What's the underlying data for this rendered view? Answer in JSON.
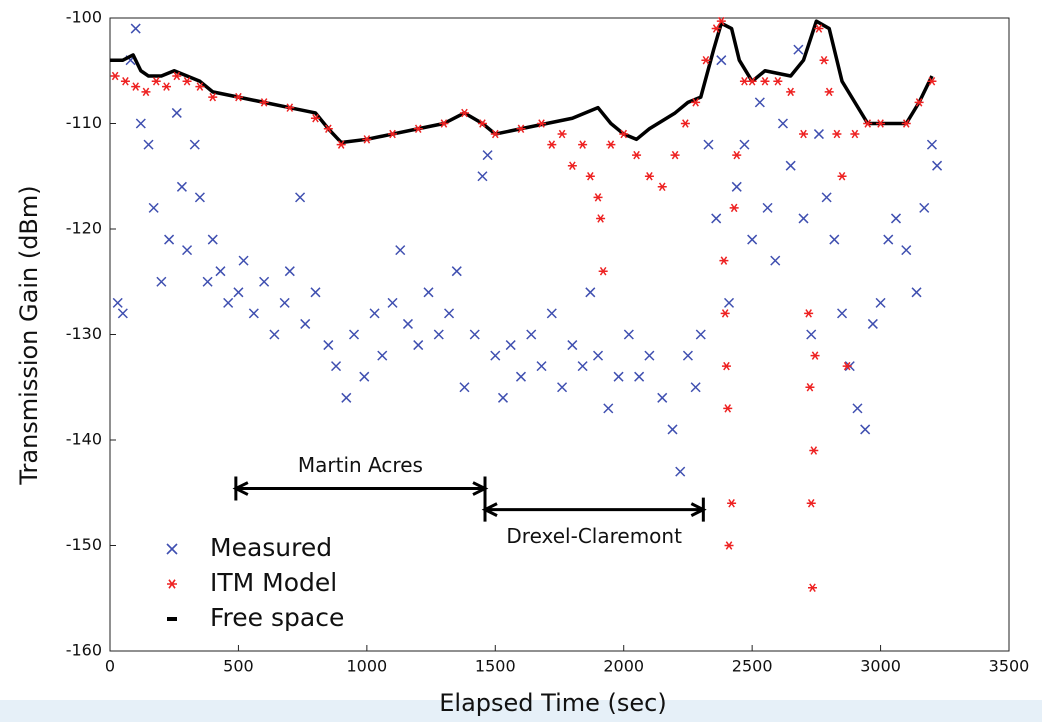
{
  "chart_data": {
    "type": "scatter",
    "xlabel": "Elapsed Time (sec)",
    "ylabel": "Transmission Gain (dBm)",
    "xlim": [
      0,
      3500
    ],
    "ylim": [
      -160,
      -100
    ],
    "xticks": [
      0,
      500,
      1000,
      1500,
      2000,
      2500,
      3000,
      3500
    ],
    "yticks": [
      -160,
      -150,
      -140,
      -130,
      -120,
      -110,
      -100
    ],
    "grid": false,
    "legend": "lower left",
    "series": [
      {
        "name": "Measured",
        "color": "#3f4fb0",
        "marker": "x",
        "x": [
          30,
          50,
          80,
          100,
          120,
          150,
          170,
          200,
          230,
          260,
          280,
          300,
          330,
          350,
          380,
          400,
          430,
          460,
          500,
          520,
          560,
          600,
          640,
          680,
          700,
          740,
          760,
          800,
          850,
          880,
          920,
          950,
          990,
          1030,
          1060,
          1100,
          1130,
          1160,
          1200,
          1240,
          1280,
          1320,
          1350,
          1380,
          1420,
          1450,
          1470,
          1500,
          1530,
          1560,
          1600,
          1640,
          1680,
          1720,
          1760,
          1800,
          1840,
          1870,
          1900,
          1940,
          1980,
          2020,
          2060,
          2100,
          2150,
          2190,
          2220,
          2250,
          2280,
          2300,
          2330,
          2360,
          2380,
          2410,
          2440,
          2470,
          2500,
          2530,
          2560,
          2590,
          2620,
          2650,
          2680,
          2700,
          2730,
          2760,
          2790,
          2820,
          2850,
          2880,
          2910,
          2940,
          2970,
          3000,
          3030,
          3060,
          3100,
          3140,
          3170,
          3200,
          3220
        ],
        "values": [
          -127,
          -128,
          -104,
          -101,
          -110,
          -112,
          -118,
          -125,
          -121,
          -109,
          -116,
          -122,
          -112,
          -117,
          -125,
          -121,
          -124,
          -127,
          -126,
          -123,
          -128,
          -125,
          -130,
          -127,
          -124,
          -117,
          -129,
          -126,
          -131,
          -133,
          -136,
          -130,
          -134,
          -128,
          -132,
          -127,
          -122,
          -129,
          -131,
          -126,
          -130,
          -128,
          -124,
          -135,
          -130,
          -115,
          -113,
          -132,
          -136,
          -131,
          -134,
          -130,
          -133,
          -128,
          -135,
          -131,
          -133,
          -126,
          -132,
          -137,
          -134,
          -130,
          -134,
          -132,
          -136,
          -139,
          -143,
          -132,
          -135,
          -130,
          -112,
          -119,
          -104,
          -127,
          -116,
          -112,
          -121,
          -108,
          -118,
          -123,
          -110,
          -114,
          -103,
          -119,
          -130,
          -111,
          -117,
          -121,
          -128,
          -133,
          -137,
          -139,
          -129,
          -127,
          -121,
          -119,
          -122,
          -126,
          -118,
          -112,
          -114
        ]
      },
      {
        "name": "ITM Model",
        "color": "#ee2222",
        "marker": "*",
        "x": [
          20,
          60,
          100,
          140,
          180,
          220,
          260,
          300,
          350,
          400,
          500,
          600,
          700,
          800,
          850,
          900,
          1000,
          1100,
          1200,
          1300,
          1380,
          1450,
          1500,
          1600,
          1680,
          1720,
          1760,
          1800,
          1840,
          1870,
          1900,
          1910,
          1920,
          1950,
          2000,
          2050,
          2100,
          2150,
          2200,
          2240,
          2280,
          2320,
          2360,
          2380,
          2390,
          2395,
          2400,
          2405,
          2410,
          2420,
          2430,
          2440,
          2470,
          2500,
          2550,
          2600,
          2650,
          2700,
          2720,
          2725,
          2730,
          2735,
          2740,
          2745,
          2760,
          2780,
          2800,
          2830,
          2850,
          2870,
          2900,
          2950,
          3000,
          3100,
          3150,
          3200
        ],
        "values": [
          -105.5,
          -106,
          -106.5,
          -107,
          -106,
          -106.5,
          -105.5,
          -106,
          -106.5,
          -107.5,
          -107.5,
          -108,
          -108.5,
          -109.5,
          -110.5,
          -112,
          -111.5,
          -111,
          -110.5,
          -110,
          -109,
          -110,
          -111,
          -110.5,
          -110,
          -112,
          -111,
          -114,
          -112,
          -115,
          -117,
          -119,
          -124,
          -112,
          -111,
          -113,
          -115,
          -116,
          -113,
          -110,
          -108,
          -104,
          -101,
          -100.3,
          -123,
          -128,
          -133,
          -137,
          -150,
          -146,
          -118,
          -113,
          -106,
          -106,
          -106,
          -106,
          -107,
          -111,
          -128,
          -135,
          -146,
          -154,
          -141,
          -132,
          -101,
          -104,
          -107,
          -111,
          -115,
          -133,
          -111,
          -110,
          -110,
          -110,
          -108,
          -106
        ]
      },
      {
        "name": "Free space",
        "color": "#000000",
        "marker": "line",
        "x": [
          0,
          50,
          90,
          120,
          150,
          200,
          250,
          300,
          350,
          400,
          500,
          600,
          700,
          800,
          850,
          900,
          1000,
          1100,
          1200,
          1300,
          1380,
          1450,
          1500,
          1600,
          1700,
          1800,
          1900,
          1950,
          2000,
          2050,
          2100,
          2200,
          2250,
          2300,
          2350,
          2380,
          2420,
          2450,
          2500,
          2550,
          2650,
          2700,
          2750,
          2800,
          2850,
          2900,
          2950,
          3000,
          3100,
          3150,
          3200
        ],
        "values": [
          -104,
          -104,
          -103.5,
          -105,
          -105.5,
          -105.5,
          -105,
          -105.5,
          -106,
          -107,
          -107.5,
          -108,
          -108.5,
          -109,
          -110.5,
          -111.8,
          -111.5,
          -111,
          -110.5,
          -110,
          -109,
          -110,
          -111,
          -110.5,
          -110,
          -109.5,
          -108.5,
          -110,
          -111,
          -111.5,
          -110.5,
          -109,
          -108,
          -107.5,
          -103,
          -100.5,
          -101,
          -104,
          -106,
          -105,
          -105.5,
          -104,
          -100.3,
          -101,
          -106,
          -108,
          -110,
          -110,
          -110,
          -108,
          -105.5
        ]
      }
    ],
    "annotations": [
      {
        "text": "Martin Acres",
        "x": [
          490,
          1460
        ],
        "y": -144.6
      },
      {
        "text": "Drexel-Claremont",
        "x": [
          1460,
          2310
        ],
        "y": -146.6
      }
    ]
  }
}
